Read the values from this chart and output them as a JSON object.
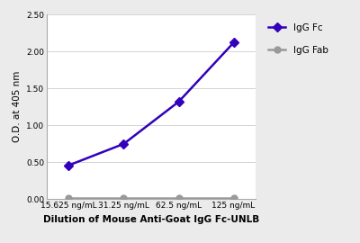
{
  "x_labels": [
    "15.625 ng/mL",
    "31.25 ng/mL",
    "62.5 ng/mL",
    "125 ng/mL"
  ],
  "x_positions": [
    0,
    1,
    2,
    3
  ],
  "igg_fc_values": [
    0.46,
    0.75,
    1.32,
    2.12
  ],
  "igg_fab_values": [
    0.02,
    0.02,
    0.02,
    0.02
  ],
  "igg_fc_color": "#3300bb",
  "igg_fab_color": "#999999",
  "fc_label": "IgG Fc",
  "fab_label": "IgG Fab",
  "ylabel": "O.D. at 405 nm",
  "xlabel": "Dilution of Mouse Anti-Goat IgG Fc-UNLB",
  "ylim": [
    0,
    2.5
  ],
  "yticks": [
    0.0,
    0.5,
    1.0,
    1.5,
    2.0,
    2.5
  ],
  "background_color": "#ebebeb",
  "plot_bg_color": "#ffffff",
  "grid_color": "#cccccc",
  "marker_size": 5,
  "line_width": 1.8,
  "label_fontsize": 7.5,
  "tick_fontsize": 6.5,
  "legend_fontsize": 7.5
}
